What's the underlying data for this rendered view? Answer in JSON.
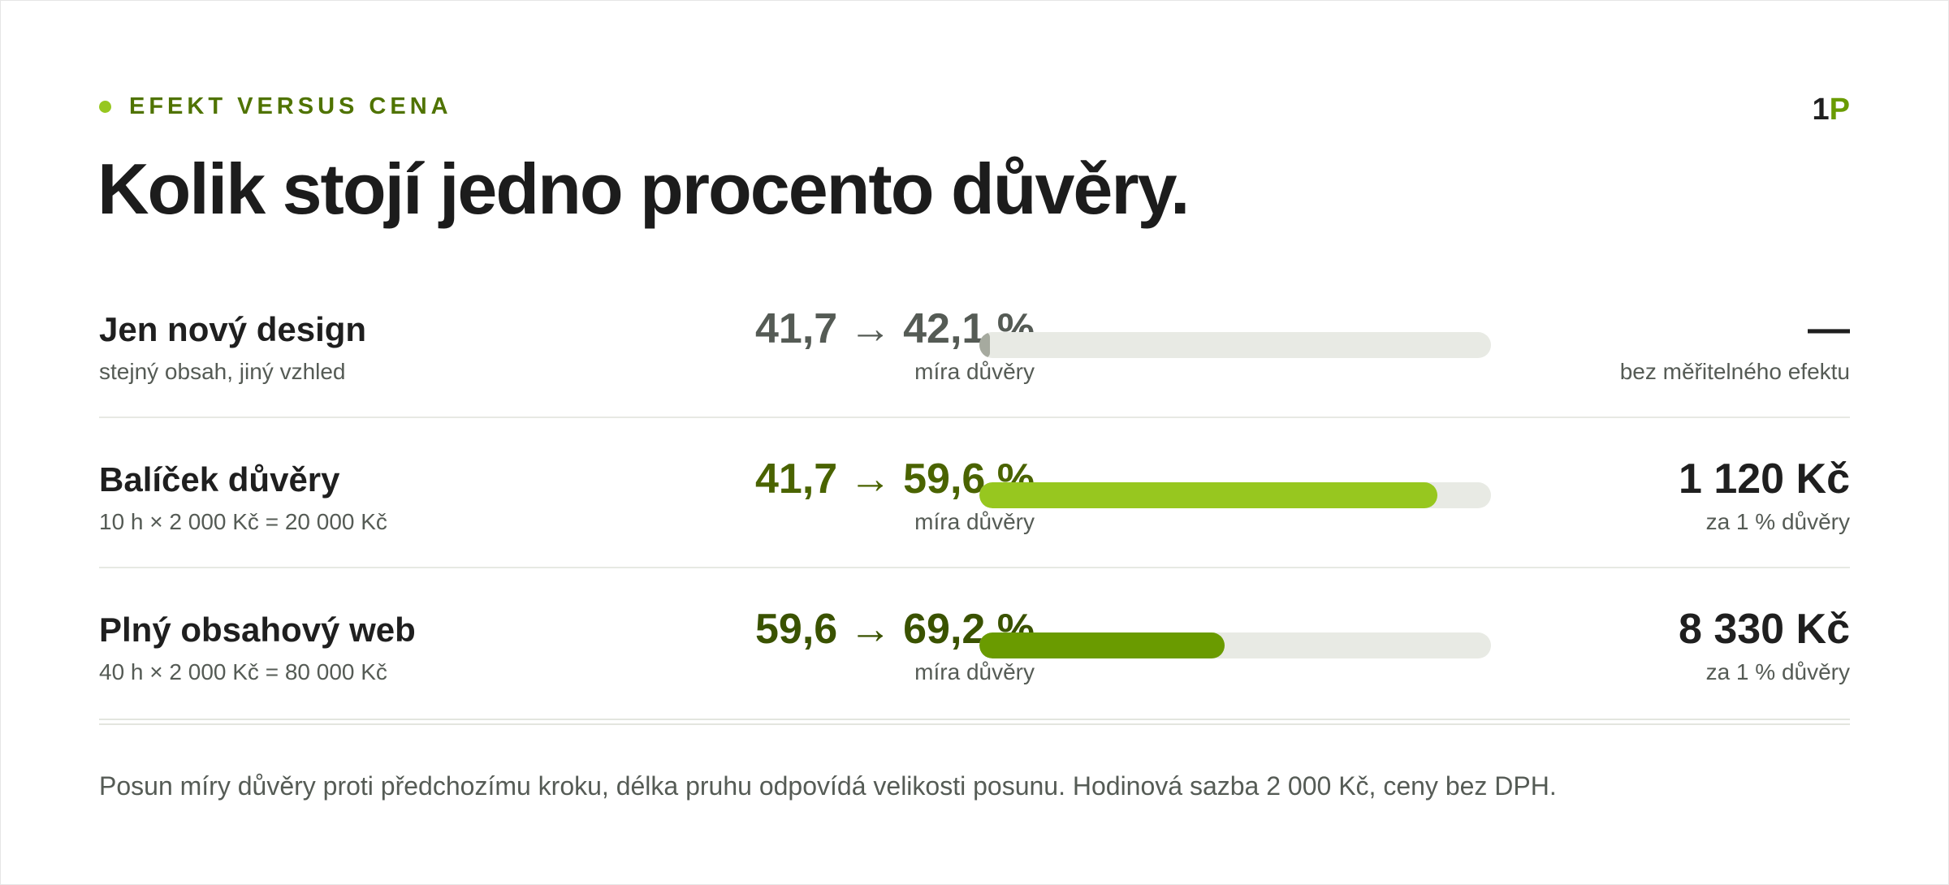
{
  "eyebrow": "EFEKT VERSUS CENA",
  "logo": {
    "number": "1",
    "letter": "P"
  },
  "title": "Kolik stojí jedno procento důvěry.",
  "colors": {
    "accent": "#97c71f",
    "muted": "#a6aa9f",
    "dark_green": "#6a9b00",
    "text_green": "#4a6300",
    "text_darkgreen": "#3a5200",
    "text_gray": "#555b55"
  },
  "chart_data": {
    "type": "bar",
    "xlim": [
      0,
      20
    ],
    "rows": [
      {
        "name": "Jen nový design",
        "sub": "stejný obsah, jiný vzhled",
        "from": 41.7,
        "to": 42.1,
        "range_label": "41,7 → 42,1 %",
        "metric": "míra důvěry",
        "shift": 0.4,
        "price": "—",
        "price_sub": "bez měřitelného efektu",
        "bar_color": "#a6aa9f",
        "value_color": "#555b55"
      },
      {
        "name": "Balíček důvěry",
        "sub": "10 h × 2 000 Kč = 20 000 Kč",
        "from": 41.7,
        "to": 59.6,
        "range_label": "41,7 → 59,6 %",
        "metric": "míra důvěry",
        "shift": 17.9,
        "price": "1 120 Kč",
        "price_sub": "za 1 % důvěry",
        "bar_color": "#97c71f",
        "value_color": "#4a6300"
      },
      {
        "name": "Plný obsahový web",
        "sub": "40 h × 2 000 Kč = 80 000 Kč",
        "from": 59.6,
        "to": 69.2,
        "range_label": "59,6 → 69,2 %",
        "metric": "míra důvěry",
        "shift": 9.6,
        "price": "8 330 Kč",
        "price_sub": "za 1 % důvěry",
        "bar_color": "#6a9b00",
        "value_color": "#3a5200"
      }
    ]
  },
  "footnote": "Posun míry důvěry proti předchozímu kroku, délka pruhu odpovídá velikosti posunu. Hodinová sazba 2 000 Kč, ceny bez DPH."
}
